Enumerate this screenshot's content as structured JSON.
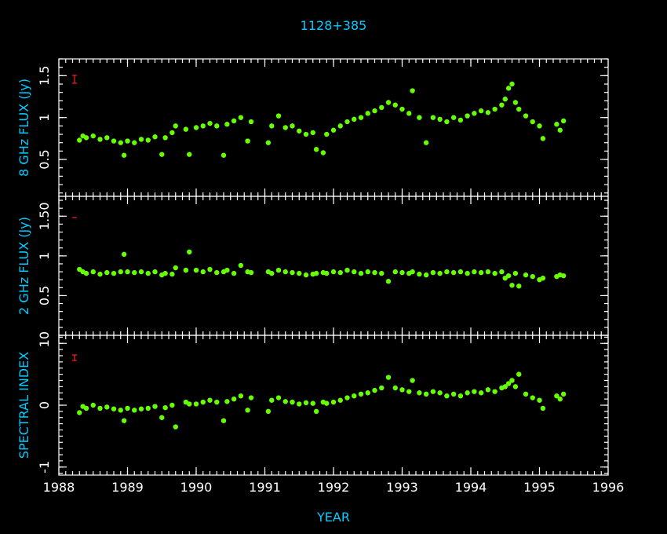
{
  "chart_data": [
    {
      "type": "scatter",
      "title": "1128+385",
      "ylabel": "8 GHz FLUX (Jy)",
      "color": "#66ff00",
      "xlim": [
        1988,
        1996
      ],
      "xticks": [
        1988,
        1989,
        1990,
        1991,
        1992,
        1993,
        1994,
        1995,
        1996
      ],
      "ylim": [
        0.06,
        1.7
      ],
      "yticks": [
        0.5,
        1,
        1.5
      ],
      "x": [
        1988.3,
        1988.35,
        1988.4,
        1988.5,
        1988.6,
        1988.7,
        1988.8,
        1988.9,
        1988.95,
        1989.0,
        1989.1,
        1989.2,
        1989.3,
        1989.4,
        1989.5,
        1989.55,
        1989.65,
        1989.7,
        1989.85,
        1989.9,
        1990.0,
        1990.1,
        1990.2,
        1990.3,
        1990.4,
        1990.45,
        1990.55,
        1990.65,
        1990.75,
        1990.8,
        1991.05,
        1991.1,
        1991.2,
        1991.3,
        1991.4,
        1991.5,
        1991.6,
        1991.7,
        1991.75,
        1991.85,
        1991.9,
        1992.0,
        1992.1,
        1992.2,
        1992.3,
        1992.4,
        1992.5,
        1992.6,
        1992.7,
        1992.8,
        1992.9,
        1993.0,
        1993.1,
        1993.15,
        1993.25,
        1993.35,
        1993.45,
        1993.55,
        1993.65,
        1993.75,
        1993.85,
        1993.95,
        1994.05,
        1994.15,
        1994.25,
        1994.35,
        1994.45,
        1994.5,
        1994.55,
        1994.6,
        1994.65,
        1994.7,
        1994.8,
        1994.9,
        1995.0,
        1995.05,
        1995.25,
        1995.3,
        1995.35
      ],
      "values": [
        0.73,
        0.78,
        0.76,
        0.78,
        0.74,
        0.76,
        0.72,
        0.7,
        0.55,
        0.72,
        0.7,
        0.74,
        0.73,
        0.77,
        0.56,
        0.76,
        0.82,
        0.9,
        0.86,
        0.56,
        0.88,
        0.9,
        0.93,
        0.9,
        0.55,
        0.92,
        0.96,
        1.0,
        0.72,
        0.95,
        0.7,
        0.9,
        1.02,
        0.88,
        0.9,
        0.84,
        0.8,
        0.82,
        0.62,
        0.58,
        0.8,
        0.85,
        0.9,
        0.95,
        0.98,
        1.0,
        1.05,
        1.08,
        1.12,
        1.18,
        1.15,
        1.1,
        1.05,
        1.32,
        1.0,
        0.7,
        1.0,
        0.98,
        0.95,
        1.0,
        0.97,
        1.02,
        1.05,
        1.08,
        1.06,
        1.1,
        1.15,
        1.22,
        1.35,
        1.4,
        1.18,
        1.1,
        1.02,
        0.95,
        0.9,
        0.75,
        0.92,
        0.85,
        0.96
      ]
    },
    {
      "type": "scatter",
      "ylabel": "2 GHz FLUX (Jy)",
      "color": "#66ff00",
      "xlim": [
        1988,
        1996
      ],
      "xticks": [
        1988,
        1989,
        1990,
        1991,
        1992,
        1993,
        1994,
        1995,
        1996
      ],
      "ylim": [
        0,
        1.75
      ],
      "yticks": [
        0,
        0.5,
        1,
        {
          "value": 1.5,
          "label": "1.50"
        }
      ],
      "x": [
        1988.3,
        1988.35,
        1988.4,
        1988.5,
        1988.6,
        1988.7,
        1988.8,
        1988.9,
        1988.95,
        1989.0,
        1989.1,
        1989.2,
        1989.3,
        1989.4,
        1989.5,
        1989.55,
        1989.65,
        1989.7,
        1989.85,
        1989.9,
        1990.0,
        1990.1,
        1990.2,
        1990.3,
        1990.4,
        1990.45,
        1990.55,
        1990.65,
        1990.75,
        1990.8,
        1991.05,
        1991.1,
        1991.2,
        1991.3,
        1991.4,
        1991.5,
        1991.6,
        1991.7,
        1991.75,
        1991.85,
        1991.9,
        1992.0,
        1992.1,
        1992.2,
        1992.3,
        1992.4,
        1992.5,
        1992.6,
        1992.7,
        1992.8,
        1992.9,
        1993.0,
        1993.1,
        1993.15,
        1993.25,
        1993.35,
        1993.45,
        1993.55,
        1993.65,
        1993.75,
        1993.85,
        1993.95,
        1994.05,
        1994.15,
        1994.25,
        1994.35,
        1994.45,
        1994.5,
        1994.55,
        1994.6,
        1994.65,
        1994.7,
        1994.8,
        1994.9,
        1995.0,
        1995.05,
        1995.25,
        1995.3,
        1995.35
      ],
      "values": [
        0.83,
        0.8,
        0.78,
        0.8,
        0.77,
        0.79,
        0.78,
        0.8,
        1.02,
        0.8,
        0.79,
        0.8,
        0.78,
        0.8,
        0.76,
        0.78,
        0.77,
        0.85,
        0.82,
        1.05,
        0.82,
        0.8,
        0.83,
        0.79,
        0.8,
        0.82,
        0.78,
        0.88,
        0.8,
        0.79,
        0.8,
        0.78,
        0.82,
        0.8,
        0.79,
        0.78,
        0.76,
        0.77,
        0.78,
        0.79,
        0.78,
        0.8,
        0.79,
        0.82,
        0.8,
        0.78,
        0.8,
        0.79,
        0.78,
        0.68,
        0.8,
        0.79,
        0.78,
        0.8,
        0.77,
        0.76,
        0.79,
        0.78,
        0.8,
        0.79,
        0.8,
        0.78,
        0.8,
        0.79,
        0.8,
        0.78,
        0.8,
        0.72,
        0.75,
        0.63,
        0.78,
        0.62,
        0.76,
        0.74,
        0.7,
        0.72,
        0.74,
        0.76,
        0.75
      ]
    },
    {
      "type": "scatter",
      "ylabel": "SPECTRAL INDEX",
      "xlabel": "YEAR",
      "color": "#66ff00",
      "xlim": [
        1988,
        1996
      ],
      "xticks": [
        1988,
        1989,
        1990,
        1991,
        1992,
        1993,
        1994,
        1995,
        1996
      ],
      "ylim": [
        -1.13,
        1.13
      ],
      "yticks": [
        -1,
        0,
        1
      ],
      "x": [
        1988.3,
        1988.35,
        1988.4,
        1988.5,
        1988.6,
        1988.7,
        1988.8,
        1988.9,
        1988.95,
        1989.0,
        1989.1,
        1989.2,
        1989.3,
        1989.4,
        1989.5,
        1989.55,
        1989.65,
        1989.7,
        1989.85,
        1989.9,
        1990.0,
        1990.1,
        1990.2,
        1990.3,
        1990.4,
        1990.45,
        1990.55,
        1990.65,
        1990.75,
        1990.8,
        1991.05,
        1991.1,
        1991.2,
        1991.3,
        1991.4,
        1991.5,
        1991.6,
        1991.7,
        1991.75,
        1991.85,
        1991.9,
        1992.0,
        1992.1,
        1992.2,
        1992.3,
        1992.4,
        1992.5,
        1992.6,
        1992.7,
        1992.8,
        1992.9,
        1993.0,
        1993.1,
        1993.15,
        1993.25,
        1993.35,
        1993.45,
        1993.55,
        1993.65,
        1993.75,
        1993.85,
        1993.95,
        1994.05,
        1994.15,
        1994.25,
        1994.35,
        1994.45,
        1994.5,
        1994.55,
        1994.6,
        1994.65,
        1994.7,
        1994.8,
        1994.9,
        1995.0,
        1995.05,
        1995.25,
        1995.3,
        1995.35
      ],
      "values": [
        -0.12,
        -0.02,
        -0.05,
        0,
        -0.05,
        -0.03,
        -0.06,
        -0.08,
        -0.25,
        -0.05,
        -0.08,
        -0.06,
        -0.05,
        -0.02,
        -0.2,
        -0.04,
        0,
        -0.35,
        0.05,
        0.02,
        0.02,
        0.05,
        0.08,
        0.05,
        -0.25,
        0.06,
        0.1,
        0.15,
        -0.08,
        0.12,
        -0.1,
        0.08,
        0.12,
        0.06,
        0.05,
        0.02,
        0.04,
        0.03,
        -0.1,
        0.05,
        0.03,
        0.05,
        0.08,
        0.12,
        0.15,
        0.18,
        0.2,
        0.24,
        0.28,
        0.45,
        0.28,
        0.25,
        0.22,
        0.4,
        0.2,
        0.18,
        0.22,
        0.2,
        0.15,
        0.18,
        0.15,
        0.2,
        0.22,
        0.2,
        0.25,
        0.22,
        0.28,
        0.3,
        0.35,
        0.4,
        0.3,
        0.5,
        0.18,
        0.12,
        0.08,
        -0.05,
        0.15,
        0.1,
        0.18
      ]
    }
  ]
}
